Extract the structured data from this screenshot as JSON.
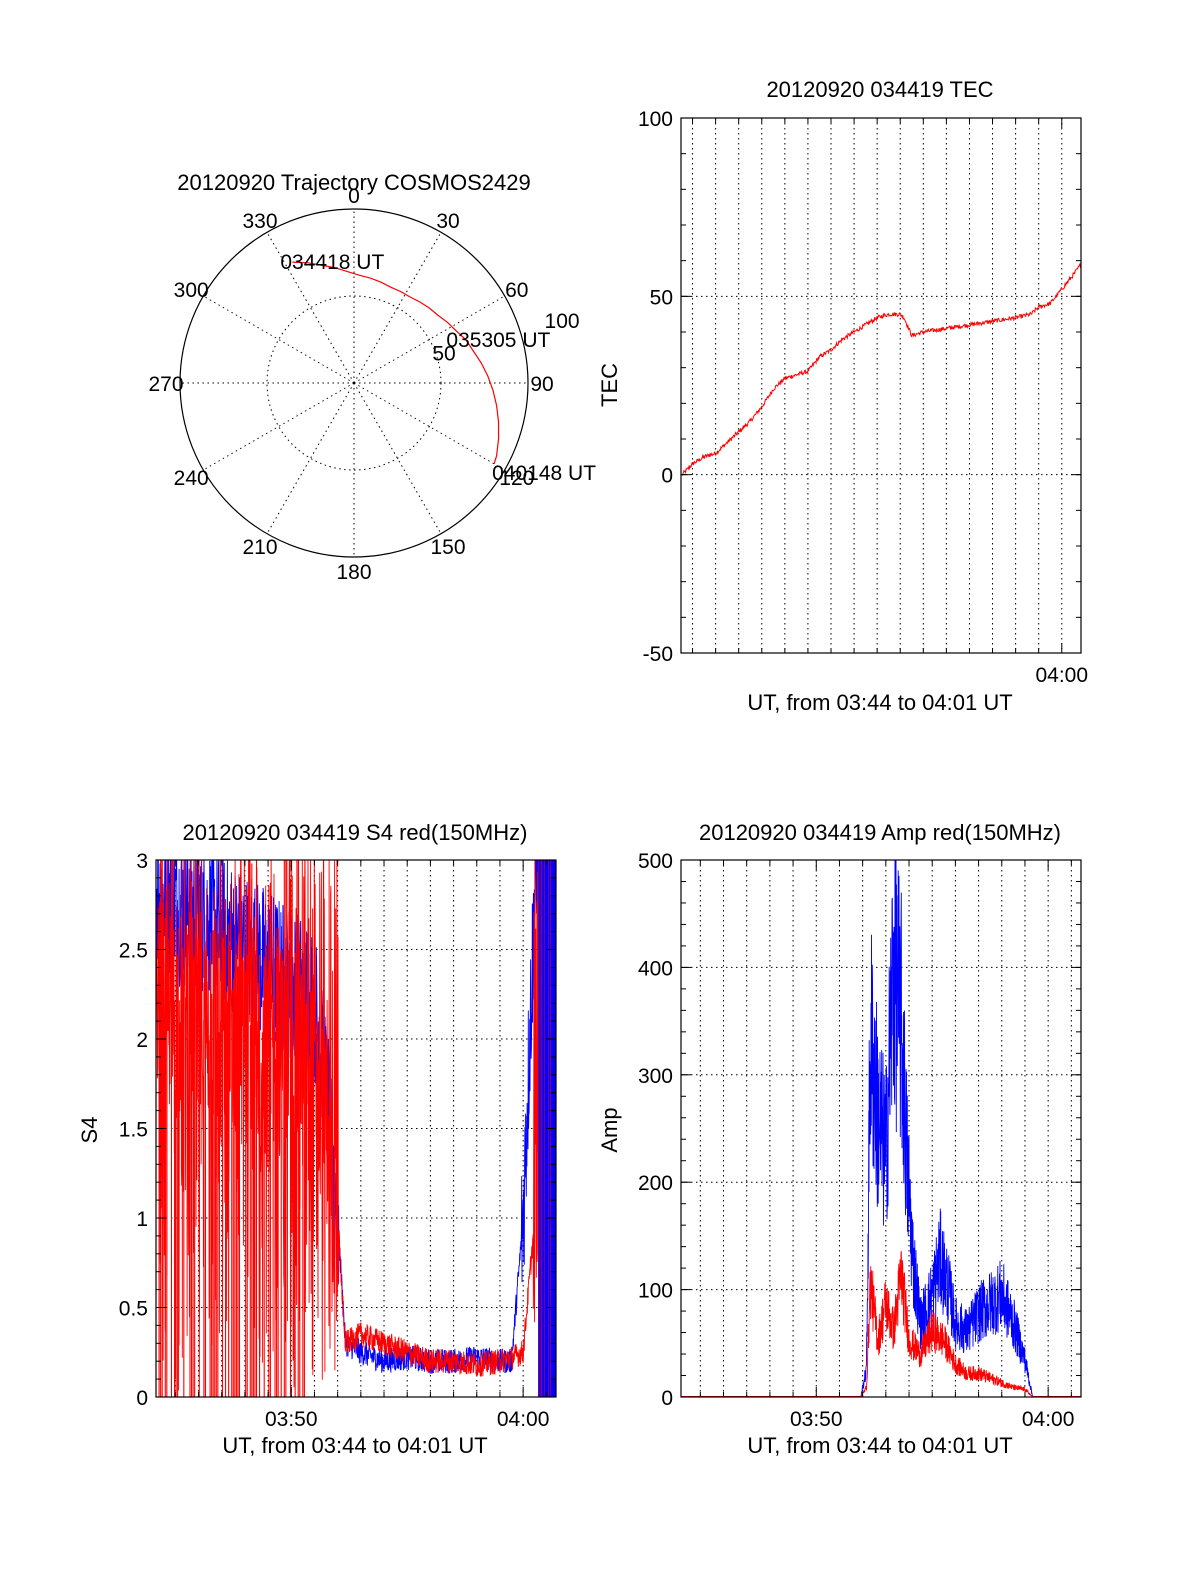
{
  "colors": {
    "red": "#ff0000",
    "blue": "#0000ff",
    "axis": "#000000"
  },
  "chart_data": [
    {
      "type": "polar",
      "title": "20120920 Trajectory COSMOS2429",
      "angle_labels": [
        "0",
        "30",
        "60",
        "90",
        "120",
        "150",
        "180",
        "210",
        "240",
        "270",
        "300",
        "330"
      ],
      "angle_values": [
        0,
        30,
        60,
        90,
        120,
        150,
        180,
        210,
        240,
        270,
        300,
        330
      ],
      "ring_labels": [
        "50",
        "100"
      ],
      "ring_values": [
        50,
        100
      ],
      "grid": true,
      "series": [
        {
          "color": "red",
          "azimuth_deg": [
            333,
            339,
            345,
            351,
            357,
            3,
            9,
            15,
            21,
            27,
            33,
            39,
            45,
            51,
            57,
            63,
            69,
            75,
            81,
            87,
            93,
            99,
            105,
            111,
            117,
            120
          ],
          "radius": [
            78,
            74,
            70,
            67,
            64,
            62,
            61,
            60,
            59,
            59,
            59,
            60,
            61,
            62,
            64,
            66,
            69,
            71,
            74,
            77,
            80,
            83,
            86,
            89,
            92,
            93
          ]
        }
      ],
      "annotations": [
        {
          "text": "034418 UT",
          "azimuth_deg": 333,
          "radius": 78
        },
        {
          "text": "035305 UT",
          "azimuth_deg": 60,
          "radius": 60
        },
        {
          "text": "040148 UT",
          "azimuth_deg": 120,
          "radius": 93
        }
      ]
    },
    {
      "type": "line",
      "title": "20120920 034419 TEC",
      "xlabel": "UT, from 03:44 to 04:01 UT",
      "ylabel": "TEC",
      "xlim": [
        "03:43:30",
        "04:00:50"
      ],
      "ylim": [
        -50,
        100
      ],
      "yticks": [
        "-50",
        "0",
        "50",
        "100"
      ],
      "ytick_values": [
        -50,
        0,
        50,
        100
      ],
      "xticks": [
        "04:00"
      ],
      "xtick_values": [
        "04:00:00"
      ],
      "grid": true,
      "series": [
        {
          "color": "red",
          "x": [
            "03:43:33",
            "03:44:00",
            "03:44:30",
            "03:45:00",
            "03:45:30",
            "03:46:00",
            "03:46:30",
            "03:47:00",
            "03:47:30",
            "03:48:00",
            "03:48:30",
            "03:49:00",
            "03:49:30",
            "03:50:00",
            "03:50:30",
            "03:51:00",
            "03:51:30",
            "03:52:00",
            "03:52:30",
            "03:53:00",
            "03:53:10",
            "03:53:30",
            "03:54:00",
            "03:55:00",
            "03:56:00",
            "03:57:00",
            "03:58:00",
            "03:58:40",
            "03:59:00",
            "03:59:30",
            "04:00:00",
            "04:00:30",
            "04:00:50"
          ],
          "y": [
            0,
            3,
            5,
            6,
            9,
            12,
            15,
            19,
            24,
            27,
            28,
            29,
            33,
            35,
            38,
            40,
            42,
            44,
            45,
            45,
            44,
            39,
            40,
            41,
            42,
            43,
            44,
            45,
            47,
            48,
            52,
            56,
            59
          ]
        }
      ]
    },
    {
      "type": "line",
      "title": "20120920 034419 S4 red(150MHz)",
      "xlabel": "UT, from 03:44 to 04:01 UT",
      "ylabel": "S4",
      "xlim": [
        "03:44:10",
        "04:01:25"
      ],
      "ylim": [
        0,
        3
      ],
      "yticks": [
        "0",
        "0.5",
        "1",
        "1.5",
        "2",
        "2.5",
        "3"
      ],
      "ytick_values": [
        0,
        0.5,
        1,
        1.5,
        2,
        2.5,
        3
      ],
      "xticks": [
        "03:50",
        "04:00"
      ],
      "xtick_values": [
        "03:50:00",
        "04:00:00"
      ],
      "grid": true,
      "series": [
        {
          "color": "blue",
          "x": [
            "03:44:10",
            "03:45:00",
            "03:46:00",
            "03:47:00",
            "03:48:00",
            "03:49:00",
            "03:50:00",
            "03:51:00",
            "03:51:30",
            "03:52:00",
            "03:52:20",
            "03:53:00",
            "03:54:00",
            "03:55:00",
            "03:56:00",
            "03:57:00",
            "03:58:00",
            "03:59:00",
            "03:59:30",
            "04:00:00",
            "04:00:30",
            "04:01:00",
            "04:01:25"
          ],
          "y": [
            2.8,
            2.75,
            2.7,
            2.6,
            2.5,
            2.4,
            2.3,
            2.2,
            1.7,
            1.0,
            0.3,
            0.25,
            0.2,
            0.22,
            0.2,
            0.2,
            0.22,
            0.2,
            0.2,
            1.0,
            2.8,
            3.0,
            3.0
          ]
        },
        {
          "color": "red",
          "x": [
            "03:44:10",
            "03:46:00",
            "03:48:00",
            "03:50:00",
            "03:51:00",
            "03:51:40",
            "03:52:00",
            "03:52:20",
            "03:53:00",
            "03:54:00",
            "03:55:00",
            "03:56:00",
            "03:57:00",
            "03:58:00",
            "03:59:00",
            "03:59:30",
            "04:00:00",
            "04:00:30",
            "04:01:25"
          ],
          "y": [
            2.2,
            2.1,
            2.0,
            1.9,
            1.8,
            1.3,
            1.0,
            0.3,
            0.35,
            0.3,
            0.25,
            0.2,
            0.2,
            0.18,
            0.2,
            0.22,
            0.25,
            1.0,
            1.5
          ]
        }
      ]
    },
    {
      "type": "line",
      "title": "20120920 034419 Amp red(150MHz)",
      "xlabel": "UT, from 03:44 to 04:01 UT",
      "ylabel": "Amp",
      "xlim": [
        "03:44:10",
        "04:01:25"
      ],
      "ylim": [
        0,
        500
      ],
      "yticks": [
        "0",
        "100",
        "200",
        "300",
        "400",
        "500"
      ],
      "ytick_values": [
        0,
        100,
        200,
        300,
        400,
        500
      ],
      "xticks": [
        "03:50",
        "04:00"
      ],
      "xtick_values": [
        "03:50:00",
        "04:00:00"
      ],
      "grid": true,
      "series": [
        {
          "color": "blue",
          "x": [
            "03:44:10",
            "03:51:55",
            "03:52:10",
            "03:52:20",
            "03:52:40",
            "03:53:00",
            "03:53:20",
            "03:53:40",
            "03:53:55",
            "03:54:10",
            "03:54:30",
            "03:55:00",
            "03:55:20",
            "03:55:40",
            "03:56:00",
            "03:56:30",
            "03:57:00",
            "03:57:30",
            "03:58:00",
            "03:58:30",
            "03:59:00",
            "03:59:20",
            "04:01:25"
          ],
          "y": [
            0,
            0,
            30,
            390,
            300,
            260,
            470,
            400,
            250,
            150,
            80,
            110,
            150,
            120,
            80,
            70,
            90,
            100,
            110,
            80,
            40,
            0,
            0
          ]
        },
        {
          "color": "red",
          "x": [
            "03:44:10",
            "03:51:55",
            "03:52:10",
            "03:52:20",
            "03:52:40",
            "03:53:00",
            "03:53:20",
            "03:53:40",
            "03:54:00",
            "03:54:30",
            "03:55:00",
            "03:55:30",
            "03:56:00",
            "03:56:30",
            "03:57:00",
            "03:57:30",
            "03:58:00",
            "03:58:30",
            "03:59:00",
            "03:59:20",
            "04:01:25"
          ],
          "y": [
            0,
            0,
            10,
            120,
            60,
            100,
            70,
            130,
            60,
            45,
            70,
            60,
            35,
            25,
            25,
            20,
            15,
            10,
            8,
            0,
            0
          ]
        }
      ]
    }
  ]
}
